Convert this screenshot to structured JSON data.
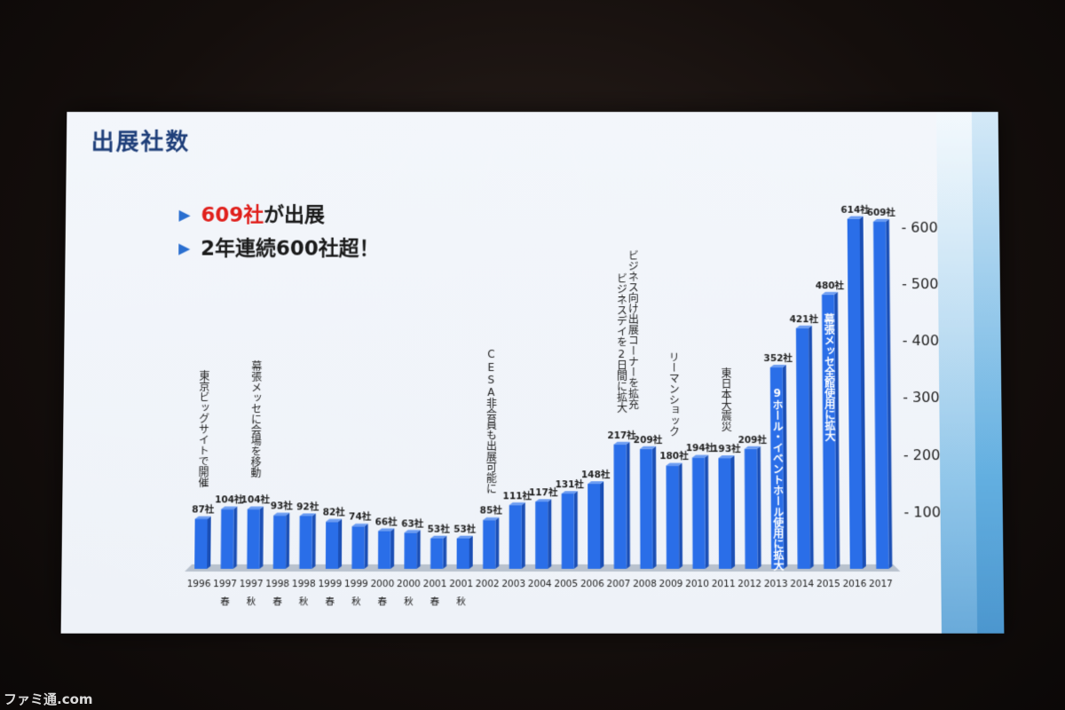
{
  "slide": {
    "title": "出展社数",
    "bullets": [
      {
        "highlight": "609社",
        "rest": "が出展"
      },
      {
        "highlight": "",
        "rest": "2年連続600社超！"
      }
    ]
  },
  "watermark": "ファミ通.com",
  "chart_data": {
    "type": "bar",
    "title": "出展社数",
    "categories": [
      "1996",
      "1997",
      "1997",
      "1998",
      "1998",
      "1999",
      "1999",
      "2000",
      "2000",
      "2001",
      "2001",
      "2002",
      "2003",
      "2004",
      "2005",
      "2006",
      "2007",
      "2008",
      "2009",
      "2010",
      "2011",
      "2012",
      "2013",
      "2014",
      "2015",
      "2016",
      "2017"
    ],
    "seasons": [
      "",
      "春",
      "秋",
      "春",
      "秋",
      "春",
      "秋",
      "春",
      "秋",
      "春",
      "秋",
      "",
      "",
      "",
      "",
      "",
      "",
      "",
      "",
      "",
      "",
      "",
      "",
      "",
      "",
      "",
      ""
    ],
    "values": [
      87,
      104,
      104,
      93,
      92,
      82,
      74,
      66,
      63,
      53,
      53,
      85,
      111,
      117,
      131,
      148,
      217,
      209,
      180,
      194,
      193,
      209,
      352,
      421,
      480,
      614,
      609
    ],
    "value_labels": [
      "87社",
      "104社",
      "104社",
      "93社",
      "92社",
      "82社",
      "74社",
      "66社",
      "63社",
      "53社",
      "53社",
      "85社",
      "111社",
      "117社",
      "131社",
      "148社",
      "217社",
      "209社",
      "180社",
      "194社",
      "193社",
      "209社",
      "352社",
      "421社",
      "480社",
      "614社",
      "609社"
    ],
    "y_ticks": [
      100,
      200,
      300,
      400,
      500,
      600
    ],
    "y_tick_labels": [
      "- 100",
      "- 200",
      "- 300",
      "- 400",
      "- 500",
      "- 600"
    ],
    "ylim": [
      0,
      620
    ],
    "bar_color": "#2a6ee8",
    "annotations": [
      {
        "index": 0,
        "text": "東京ビッグサイトで開催",
        "placement": "above"
      },
      {
        "index": 2,
        "text": "幕張メッセに会場を移動",
        "placement": "above"
      },
      {
        "index": 11,
        "text": "CESA非会員も出展可能に",
        "placement": "above"
      },
      {
        "index": 16,
        "text": "ビジネスデイを2日間に拡大",
        "placement": "above"
      },
      {
        "index": 16,
        "text": "ビジネス向け出展コーナーを拡充",
        "placement": "above"
      },
      {
        "index": 18,
        "text": "リーマンショック",
        "placement": "above"
      },
      {
        "index": 20,
        "text": "東日本大震災",
        "placement": "above"
      },
      {
        "index": 22,
        "text": "9ホール・イベントホール使用に拡大",
        "placement": "inside"
      },
      {
        "index": 24,
        "text": "幕張メッセ全館使用に拡大",
        "placement": "inside"
      }
    ]
  }
}
